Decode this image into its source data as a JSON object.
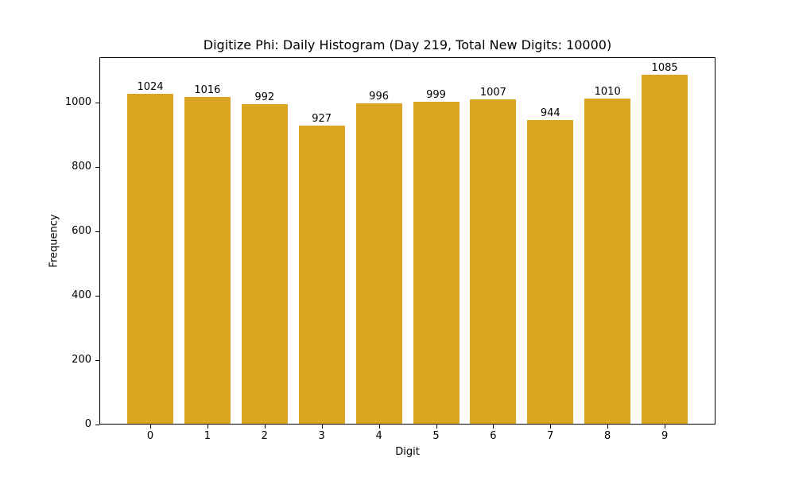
{
  "chart_data": {
    "type": "bar",
    "title": "Digitize Phi: Daily Histogram (Day 219, Total New Digits: 10000)",
    "xlabel": "Digit",
    "ylabel": "Frequency",
    "categories": [
      "0",
      "1",
      "2",
      "3",
      "4",
      "5",
      "6",
      "7",
      "8",
      "9"
    ],
    "values": [
      1024,
      1016,
      992,
      927,
      996,
      999,
      1007,
      944,
      1010,
      1085
    ],
    "data_labels": [
      "1024",
      "1016",
      "992",
      "927",
      "996",
      "999",
      "1007",
      "944",
      "1010",
      "1085"
    ],
    "yticks": [
      "0",
      "200",
      "400",
      "600",
      "800",
      "1000"
    ],
    "ylim": [
      0,
      1140
    ],
    "grid": false,
    "legend": null,
    "bar_color": "#DAA520"
  }
}
